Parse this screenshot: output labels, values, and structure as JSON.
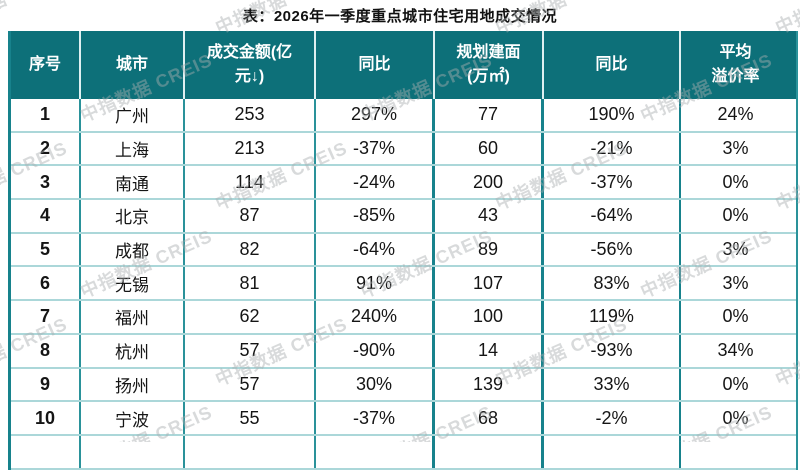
{
  "title": "表：2026年一季度重点城市住宅用地成交情况",
  "chart_data": {
    "type": "table",
    "title": "表：2026年一季度重点城市住宅用地成交情况",
    "columns": [
      "序号",
      "城市",
      "成交金额(亿元↓)",
      "同比",
      "规划建面(万㎡)",
      "同比",
      "平均溢价率"
    ],
    "rows": [
      [
        "1",
        "广州",
        "253",
        "297%",
        "77",
        "190%",
        "24%"
      ],
      [
        "2",
        "上海",
        "213",
        "-37%",
        "60",
        "-21%",
        "3%"
      ],
      [
        "3",
        "南通",
        "114",
        "-24%",
        "200",
        "-37%",
        "0%"
      ],
      [
        "4",
        "北京",
        "87",
        "-85%",
        "43",
        "-64%",
        "0%"
      ],
      [
        "5",
        "成都",
        "82",
        "-64%",
        "89",
        "-56%",
        "3%"
      ],
      [
        "6",
        "无锡",
        "81",
        "91%",
        "107",
        "83%",
        "3%"
      ],
      [
        "7",
        "福州",
        "62",
        "240%",
        "100",
        "119%",
        "0%"
      ],
      [
        "8",
        "杭州",
        "57",
        "-90%",
        "14",
        "-93%",
        "34%"
      ],
      [
        "9",
        "扬州",
        "57",
        "30%",
        "139",
        "33%",
        "0%"
      ],
      [
        "10",
        "宁波",
        "55",
        "-37%",
        "68",
        "-2%",
        "0%"
      ]
    ]
  },
  "header_display": [
    "序号",
    "城市",
    "成交金额(亿\n元↓)",
    "同比",
    "规划建面\n(万㎡)",
    "同比",
    "平均\n溢价率"
  ],
  "partial_row_visible": true,
  "watermark": {
    "text": "中指数据 CREIS"
  },
  "colors": {
    "header_bg": "#0d7079",
    "header_text": "#ffffff",
    "header_divider": "#dff0f1",
    "border_strong": "#17828c",
    "border_vertical": "#2a929a",
    "border_row": "#abd7d9",
    "watermark": "#a9aeb0",
    "text": "#1a1a1a"
  }
}
